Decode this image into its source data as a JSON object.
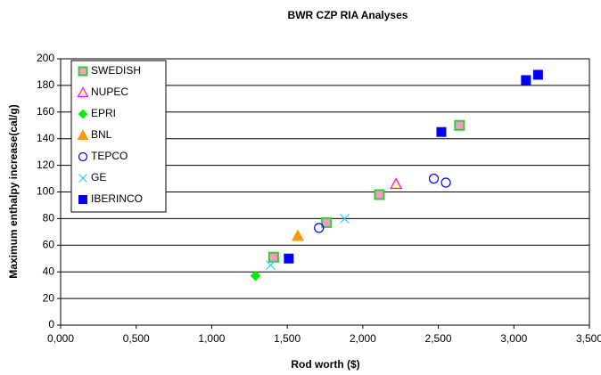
{
  "chart_data": {
    "type": "scatter",
    "title": "BWR CZP RIA Analyses",
    "x_label": "Rod worth ($)",
    "y_label": "Maximum enthalpy increase(cal/g)",
    "xlim": [
      0,
      3.5
    ],
    "ylim": [
      0,
      200
    ],
    "xticks": [
      {
        "value": 0,
        "label": "0,000"
      },
      {
        "value": 0.5,
        "label": "0,500"
      },
      {
        "value": 1,
        "label": "1,000"
      },
      {
        "value": 1.5,
        "label": "1,500"
      },
      {
        "value": 2,
        "label": "2,000"
      },
      {
        "value": 2.5,
        "label": "2,500"
      },
      {
        "value": 3,
        "label": "3,000"
      },
      {
        "value": 3.5,
        "label": "3,500"
      }
    ],
    "yticks": [
      0,
      20,
      40,
      60,
      80,
      100,
      120,
      140,
      160,
      180,
      200
    ],
    "grid": true,
    "legend": "upper-left",
    "series": [
      {
        "name": "SWEDISH",
        "marker": "square",
        "color": "#ff99cc",
        "edge": "#33cc33",
        "x": [
          1.41,
          1.76,
          2.11,
          2.64
        ],
        "values": [
          51,
          77,
          98,
          150
        ]
      },
      {
        "name": "NUPEC",
        "marker": "triangle",
        "color": "#ffff99",
        "edge": "#ff00ff",
        "x": [
          2.22
        ],
        "values": [
          106
        ]
      },
      {
        "name": "EPRI",
        "marker": "diamond",
        "color": "#00ee00",
        "edge": "#00ee00",
        "x": [
          1.29
        ],
        "values": [
          37
        ]
      },
      {
        "name": "BNL",
        "marker": "triangle",
        "color": "#ff9900",
        "edge": "#ff9900",
        "x": [
          1.57
        ],
        "values": [
          67
        ]
      },
      {
        "name": "TEPCO",
        "marker": "circle",
        "color": "none",
        "edge": "#0000ff",
        "x": [
          1.71,
          2.47,
          2.55
        ],
        "values": [
          73,
          110,
          107
        ]
      },
      {
        "name": "GE",
        "marker": "cross",
        "color": "none",
        "edge": "#33ccff",
        "x": [
          1.39,
          1.88
        ],
        "values": [
          45,
          80
        ]
      },
      {
        "name": "IBERINCO",
        "marker": "square",
        "color": "#0000ff",
        "edge": "#0000ff",
        "x": [
          1.51,
          2.52,
          3.08,
          3.16
        ],
        "values": [
          50,
          145,
          184,
          188
        ]
      }
    ]
  }
}
